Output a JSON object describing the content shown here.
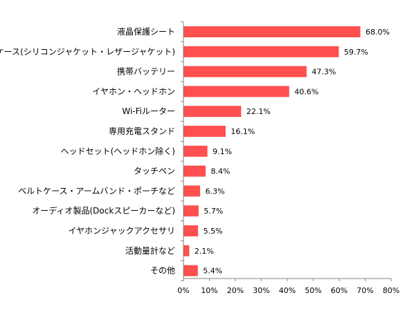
{
  "chart_data": {
    "type": "bar",
    "orientation": "horizontal",
    "categories": [
      "液晶保護シート",
      "ケース(シリコンジャケット・レザージャケット)",
      "携帯バッテリー",
      "イヤホン・ヘッドホン",
      "Wi-Fiルーター",
      "専用充電スタンド",
      "ヘッドセット(ヘッドホン除く)",
      "タッチペン",
      "ベルトケース・アームバンド・ポーチなど",
      "オーディオ製品(Dockスピーカーなど)",
      "イヤホンジャックアクセサリ",
      "活動量計など",
      "その他"
    ],
    "values": [
      68.0,
      59.7,
      47.3,
      40.6,
      22.1,
      16.1,
      9.1,
      8.4,
      6.3,
      5.7,
      5.5,
      2.1,
      5.4
    ],
    "value_labels": [
      "68.0%",
      "59.7%",
      "47.3%",
      "40.6%",
      "22.1%",
      "16.1%",
      "9.1%",
      "8.4%",
      "6.3%",
      "5.7%",
      "5.5%",
      "2.1%",
      "5.4%"
    ],
    "x_ticks": [
      "0%",
      "10%",
      "20%",
      "30%",
      "40%",
      "50%",
      "60%",
      "70%",
      "80%"
    ],
    "xlim": [
      0,
      80
    ],
    "title": "",
    "xlabel": "",
    "ylabel": "",
    "grid": false,
    "legend": "none",
    "bar_color": "#ff4f4f",
    "axis_color": "#808080"
  }
}
